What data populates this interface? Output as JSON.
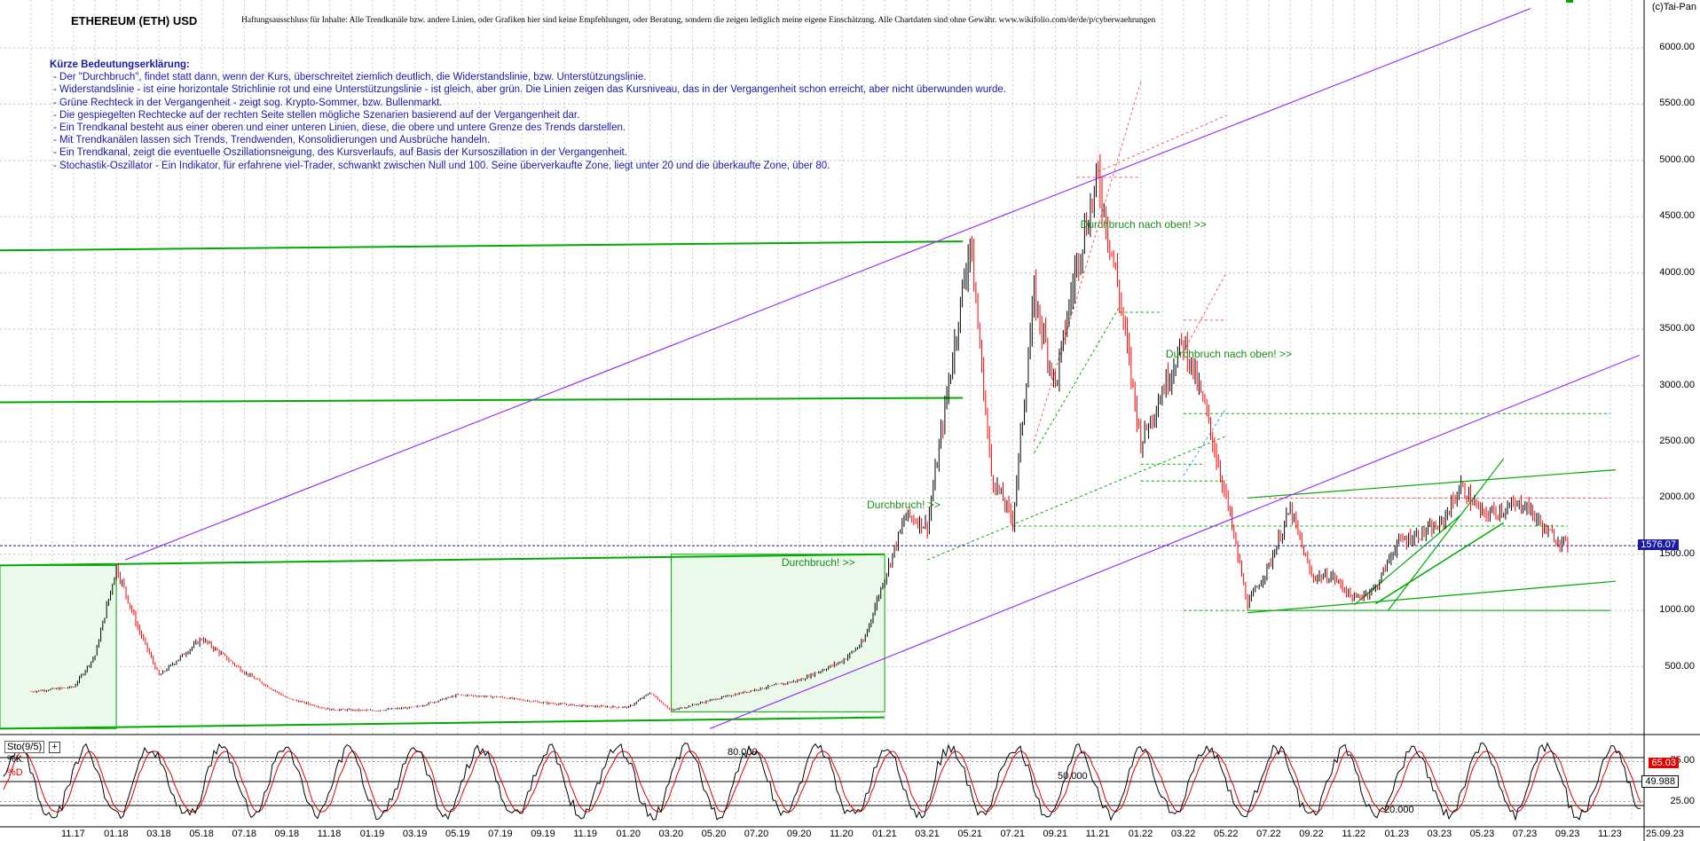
{
  "header": {
    "title": "ETHEREUM (ETH) USD",
    "disclaimer": "Haftungsausschluss für Inhalte: Alle Trendkanäle bzw. andere Linien, oder Grafiken hier sind keine Empfehlungen, oder Beratung, sondern die zeigen lediglich meine eigene Einschätzung. Alle Chartdaten sind ohne Gewähr. www.wikifolio.com/de/de/p/cyberwaehrungen",
    "copyright": "(c)Tai-Pan"
  },
  "legend": {
    "heading": "Kürze Bedeutungserklärung:",
    "items": [
      "- Der \"Durchbruch\", findet statt dann, wenn der Kurs, überschreitet ziemlich deutlich, die Widerstandslinie, bzw. Unterstützungslinie.",
      "- Widerstandslinie - ist eine horizontale Strichlinie rot und eine Unterstützungslinie - ist gleich, aber grün. Die Linien zeigen das Kursniveau, das in der Vergangenheit schon erreicht, aber nicht überwunden wurde.",
      "- Grüne Rechteck in der Vergangenheit - zeigt sog. Krypto-Sommer, bzw. Bullenmarkt.",
      "- Die gespiegelten Rechtecke auf der rechten Seite stellen mögliche Szenarien basierend auf der Vergangenheit dar.",
      "- Ein Trendkanal besteht aus einer oberen und einer unteren Linien, diese, die obere und untere Grenze des Trends darstellen.",
      "- Mit Trendkanälen lassen sich Trends, Trendwenden, Konsolidierungen und Ausbrüche handeln.",
      "- Ein Trendkanal, zeigt die eventuelle Oszillationsneigung, des Kursverlaufs, auf Basis der Kursoszillation in der Vergangenheit.",
      "- Stochastik-Oszillator - Ein Indikator, für erfahrene viel-Trader, schwankt zwischen Null und 100. Seine überverkaufte Zone, liegt unter 20 und die überkaufte Zone, über 80."
    ]
  },
  "annotations": [
    {
      "text": "Durchbruch nach oben! >>",
      "x": "11.21",
      "y": 4420
    },
    {
      "text": "Durchbruch nach oben! >>",
      "x": "03.22",
      "y": 3270
    },
    {
      "text": "Durchbruch! >>",
      "x": "01.21",
      "y": 1930
    },
    {
      "text": "Durchbruch! >>",
      "x": "09.20",
      "y": 1420
    }
  ],
  "colors": {
    "price_up": "#000000",
    "price_down": "#ff0000",
    "trend_channel": "#9933ff",
    "support": "#00aa00",
    "resistance": "#ff5555",
    "box_fill": "#eaf9ea",
    "current_price": "#1a1aa6",
    "stoch_k": "#000000",
    "stoch_d": "#e00000"
  },
  "chart_data": [
    {
      "type": "candlestick",
      "title": "ETHEREUM (ETH) USD",
      "x_ticks": [
        "11.17",
        "01.18",
        "03.18",
        "05.18",
        "07.18",
        "09.18",
        "11.18",
        "01.19",
        "03.19",
        "05.19",
        "07.19",
        "09.19",
        "11.19",
        "01.20",
        "03.20",
        "05.20",
        "07.20",
        "09.20",
        "11.20",
        "01.21",
        "03.21",
        "05.21",
        "07.21",
        "09.21",
        "11.21",
        "01.22",
        "03.22",
        "05.22",
        "07.22",
        "09.22",
        "11.22",
        "01.23",
        "03.23",
        "05.23",
        "07.23",
        "09.23",
        "11.23",
        "25.09.23"
      ],
      "y_ticks": [
        500,
        1000,
        1500,
        2000,
        2500,
        3000,
        3500,
        4000,
        4500,
        5000,
        5500,
        6000
      ],
      "y_axis_side": "right",
      "ylim": [
        -100,
        6350
      ],
      "current_price": "1576.07",
      "price_path": [
        [
          "09.17",
          280
        ],
        [
          "11.17",
          320
        ],
        [
          "12.17",
          600
        ],
        [
          "01.18",
          1390
        ],
        [
          "02.18",
          850
        ],
        [
          "03.18",
          420
        ],
        [
          "05.18",
          750
        ],
        [
          "07.18",
          450
        ],
        [
          "09.18",
          220
        ],
        [
          "11.18",
          120
        ],
        [
          "01.19",
          110
        ],
        [
          "03.19",
          140
        ],
        [
          "05.19",
          250
        ],
        [
          "07.19",
          230
        ],
        [
          "09.19",
          180
        ],
        [
          "11.19",
          150
        ],
        [
          "01.20",
          140
        ],
        [
          "02.20",
          270
        ],
        [
          "03.20",
          110
        ],
        [
          "05.20",
          210
        ],
        [
          "07.20",
          300
        ],
        [
          "09.20",
          380
        ],
        [
          "11.20",
          550
        ],
        [
          "12.20",
          720
        ],
        [
          "01.21",
          1300
        ],
        [
          "02.21",
          1850
        ],
        [
          "03.21",
          1750
        ],
        [
          "05.21",
          4300
        ],
        [
          "06.21",
          2200
        ],
        [
          "07.21",
          1800
        ],
        [
          "08.21",
          3800
        ],
        [
          "09.21",
          3000
        ],
        [
          "10.21",
          4100
        ],
        [
          "11.21",
          4850
        ],
        [
          "12.21",
          3800
        ],
        [
          "01.22",
          2500
        ],
        [
          "03.22",
          3400
        ],
        [
          "04.22",
          2800
        ],
        [
          "05.22",
          2000
        ],
        [
          "06.22",
          1050
        ],
        [
          "07.22",
          1400
        ],
        [
          "08.22",
          1900
        ],
        [
          "09.22",
          1300
        ],
        [
          "10.22",
          1300
        ],
        [
          "11.22",
          1100
        ],
        [
          "12.22",
          1200
        ],
        [
          "01.23",
          1600
        ],
        [
          "03.23",
          1750
        ],
        [
          "04.23",
          2100
        ],
        [
          "05.23",
          1850
        ],
        [
          "07.23",
          1950
        ],
        [
          "08.23",
          1700
        ],
        [
          "09.23",
          1576
        ]
      ]
    },
    {
      "type": "line",
      "title": "Sto(9/5)",
      "series": [
        {
          "name": "%K",
          "value": "65.03"
        },
        {
          "name": "%D",
          "value": "49.988"
        }
      ],
      "levels": [
        "80.000",
        "50.000",
        "20.000"
      ],
      "y_ticks": [
        "75.00",
        "25.00"
      ],
      "ylim": [
        0,
        100
      ]
    }
  ]
}
